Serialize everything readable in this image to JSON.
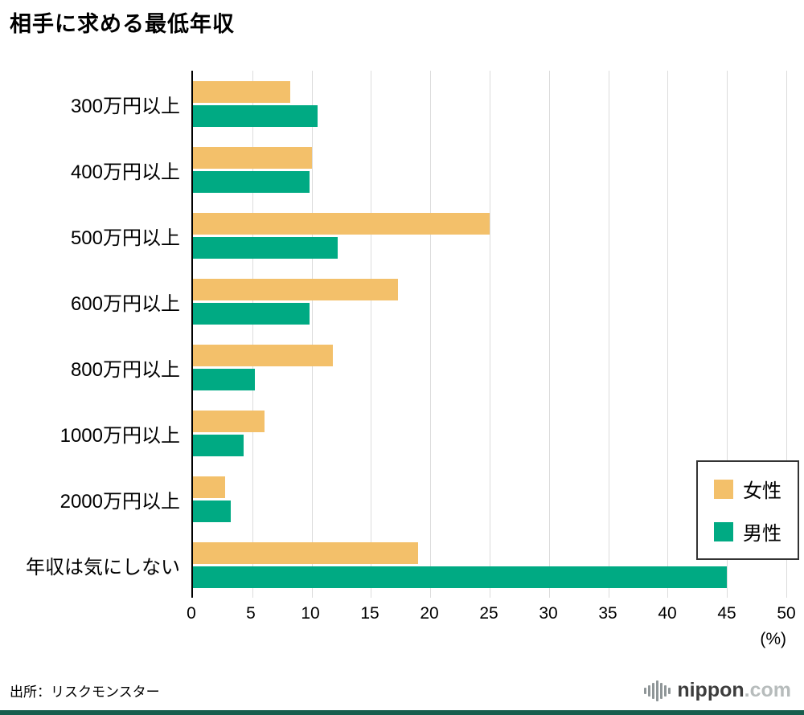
{
  "title": "相手に求める最低年収",
  "source": "出所：リスクモンスター",
  "logo": {
    "name": "nippon",
    "tld": ".com"
  },
  "chart_data": {
    "type": "bar",
    "orientation": "horizontal",
    "title": "相手に求める最低年収",
    "categories": [
      "300万円以上",
      "400万円以上",
      "500万円以上",
      "600万円以上",
      "800万円以上",
      "1000万円以上",
      "2000万円以上",
      "年収は気にしない"
    ],
    "series": [
      {
        "name": "女性",
        "color": "#f3c06a",
        "values": [
          8.2,
          10.0,
          25.0,
          17.3,
          11.8,
          6.0,
          2.7,
          19.0
        ]
      },
      {
        "name": "男性",
        "color": "#00aa83",
        "values": [
          10.5,
          9.8,
          12.2,
          9.8,
          5.2,
          4.3,
          3.2,
          45.0
        ]
      }
    ],
    "xlim": [
      0,
      50
    ],
    "xticks": [
      0,
      5,
      10,
      15,
      20,
      25,
      30,
      35,
      40,
      45,
      50
    ],
    "xlabel": "(%)",
    "grid": true,
    "legend_position": "middle-right",
    "colors": {
      "female": "#f3c06a",
      "male": "#00aa83",
      "gridline": "#dcdcdc",
      "axis": "#000000",
      "bottom_strip": "#175e4e"
    }
  }
}
